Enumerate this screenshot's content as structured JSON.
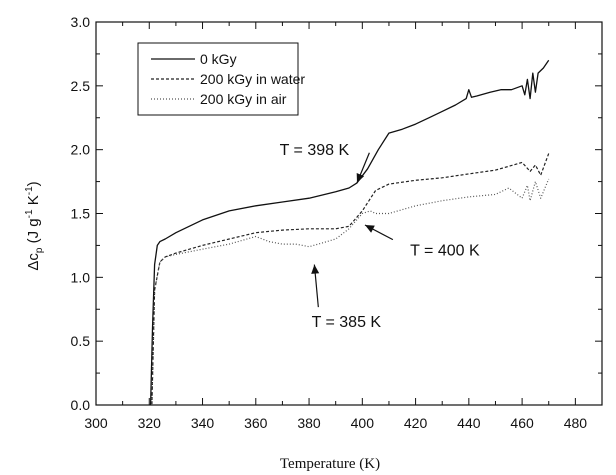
{
  "chart_data": {
    "type": "line",
    "xlabel": "Temperature (K)",
    "ylabel": "Δc",
    "ylabel_sub": "p",
    "ylabel_units": " (J g",
    "ylabel_sup1": "-1",
    "ylabel_mid": " K",
    "ylabel_sup2": "-1",
    "ylabel_end": ")",
    "xlim": [
      300,
      490
    ],
    "ylim": [
      0.0,
      3.0
    ],
    "xticks": [
      300,
      320,
      340,
      360,
      380,
      400,
      420,
      440,
      460,
      480
    ],
    "yticks": [
      "0.0",
      "0.5",
      "1.0",
      "1.5",
      "2.0",
      "2.5",
      "3.0"
    ],
    "legend_position": "top-left",
    "series": [
      {
        "name": "0 kGy",
        "style": "solid",
        "color": "#111111",
        "x": [
          320.5,
          321.2,
          322,
          323,
          324,
          326,
          330,
          340,
          350,
          360,
          370,
          380,
          390,
          395,
          398,
          402,
          406,
          410,
          415,
          420,
          425,
          430,
          435,
          439,
          440,
          441,
          443,
          448,
          452,
          456,
          460,
          461,
          462,
          463,
          464,
          465,
          466,
          468,
          470
        ],
        "y": [
          0.0,
          0.6,
          1.1,
          1.25,
          1.28,
          1.3,
          1.35,
          1.45,
          1.52,
          1.56,
          1.59,
          1.62,
          1.67,
          1.7,
          1.74,
          1.85,
          2.0,
          2.13,
          2.16,
          2.2,
          2.25,
          2.3,
          2.35,
          2.4,
          2.47,
          2.41,
          2.42,
          2.45,
          2.47,
          2.47,
          2.5,
          2.43,
          2.55,
          2.4,
          2.6,
          2.45,
          2.6,
          2.64,
          2.7
        ]
      },
      {
        "name": "200 kGy in water",
        "style": "dashed",
        "color": "#222222",
        "x": [
          321,
          322,
          324,
          326,
          330,
          340,
          350,
          360,
          370,
          380,
          390,
          395,
          400,
          405,
          410,
          420,
          430,
          440,
          450,
          455,
          460,
          463,
          465,
          467,
          470
        ],
        "y": [
          0.0,
          0.9,
          1.12,
          1.16,
          1.19,
          1.25,
          1.3,
          1.35,
          1.37,
          1.38,
          1.38,
          1.4,
          1.52,
          1.68,
          1.73,
          1.76,
          1.78,
          1.81,
          1.84,
          1.87,
          1.9,
          1.83,
          1.88,
          1.8,
          1.97
        ]
      },
      {
        "name": "200 kGy in air",
        "style": "dotted",
        "color": "#555555",
        "x": [
          321,
          322,
          324,
          326,
          330,
          340,
          350,
          360,
          365,
          370,
          375,
          380,
          385,
          390,
          395,
          400,
          403,
          405,
          410,
          420,
          430,
          440,
          450,
          455,
          460,
          462,
          463,
          465,
          467,
          470
        ],
        "y": [
          0.0,
          0.9,
          1.12,
          1.16,
          1.18,
          1.22,
          1.26,
          1.32,
          1.28,
          1.26,
          1.26,
          1.24,
          1.27,
          1.3,
          1.38,
          1.5,
          1.52,
          1.5,
          1.5,
          1.56,
          1.6,
          1.63,
          1.65,
          1.7,
          1.62,
          1.72,
          1.6,
          1.75,
          1.62,
          1.77
        ]
      }
    ],
    "annotations": [
      {
        "text": "T = 398 K",
        "point": [
          398,
          1.74
        ],
        "label_at": [
          382,
          1.96
        ]
      },
      {
        "text": "T = 400 K",
        "point": [
          401,
          1.41
        ],
        "label_at": [
          431,
          1.17
        ]
      },
      {
        "text": "T = 385 K",
        "point": [
          382,
          1.1
        ],
        "label_at": [
          394,
          0.61
        ]
      }
    ]
  }
}
